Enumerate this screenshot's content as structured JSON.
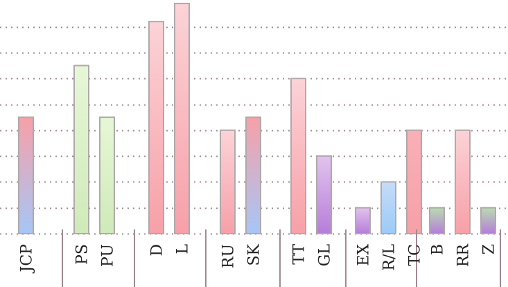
{
  "chart_data": {
    "type": "bar",
    "title": "",
    "xlabel": "",
    "ylabel": "",
    "ylim": [
      0,
      9
    ],
    "grid": true,
    "groups": [
      {
        "bars": [
          {
            "label": "JCP",
            "value": 4.5,
            "gradient": [
              "#f7a0a8",
              "#a7c6f7"
            ]
          }
        ]
      },
      {
        "bars": [
          {
            "label": "PS",
            "value": 6.5,
            "gradient": [
              "#e6f7d6",
              "#cfeab8"
            ]
          },
          {
            "label": "PU",
            "value": 4.5,
            "gradient": [
              "#e6f7d6",
              "#cfeab8"
            ]
          }
        ]
      },
      {
        "bars": [
          {
            "label": "D",
            "value": 8.2,
            "gradient": [
              "#fbd3d7",
              "#f7a0a8"
            ]
          },
          {
            "label": "L",
            "value": 8.9,
            "gradient": [
              "#fbd3d7",
              "#f7a0a8"
            ]
          }
        ]
      },
      {
        "bars": [
          {
            "label": "RU",
            "value": 4.0,
            "gradient": [
              "#fbd3d7",
              "#f7a0a8"
            ]
          },
          {
            "label": "SK",
            "value": 4.5,
            "gradient": [
              "#f7a0a8",
              "#a7c6f7"
            ]
          }
        ]
      },
      {
        "bars": [
          {
            "label": "TT",
            "value": 6.0,
            "gradient": [
              "#fbd3d7",
              "#f7a0a8"
            ]
          },
          {
            "label": "GL",
            "value": 3.0,
            "gradient": [
              "#e2c3ee",
              "#b57ed9"
            ]
          }
        ]
      },
      {
        "bars": [
          {
            "label": "EX",
            "value": 1.0,
            "gradient": [
              "#e2c3ee",
              "#b57ed9"
            ]
          },
          {
            "label": "R/L",
            "value": 2.0,
            "gradient": [
              "#c6dcf8",
              "#9ccaf7"
            ]
          },
          {
            "label": "TC",
            "value": 4.0,
            "gradient": [
              "#f9b0b6",
              "#f7a0a8"
            ]
          }
        ]
      },
      {
        "bars": [
          {
            "label": "B",
            "value": 1.0,
            "gradient": [
              "#b9dbb0",
              "#b57ed9"
            ]
          },
          {
            "label": "RR",
            "value": 4.0,
            "gradient": [
              "#fbd3d7",
              "#f7a0a8"
            ]
          },
          {
            "label": "Z",
            "value": 1.0,
            "gradient": [
              "#b9dbb0",
              "#b57ed9"
            ]
          }
        ]
      }
    ],
    "colors": {
      "bar_stroke": "#b0a9ab",
      "grid": "#8a6a70",
      "separator": "#a08a90",
      "baseline": "#8a6a70"
    }
  }
}
